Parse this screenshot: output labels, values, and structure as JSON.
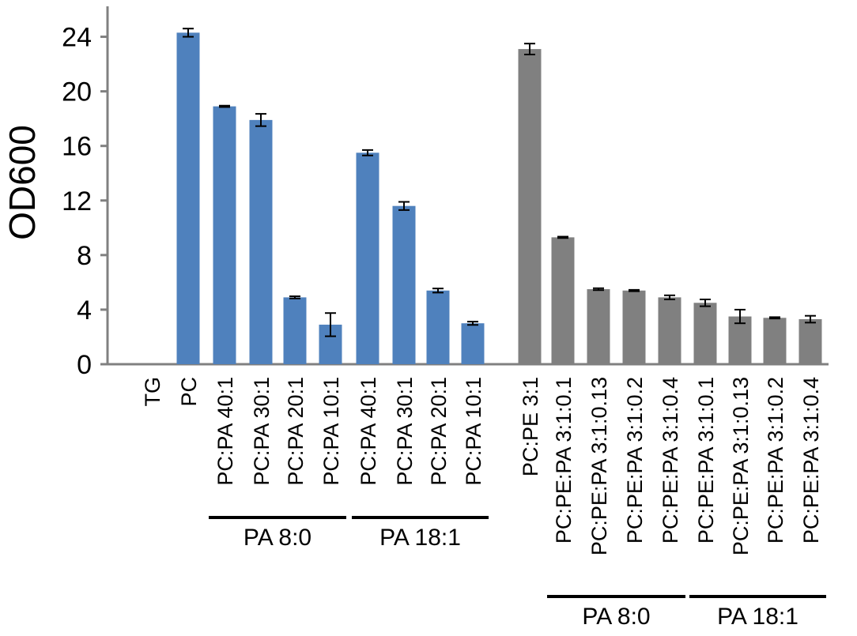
{
  "chart_data": {
    "type": "bar",
    "title": "",
    "xlabel": "",
    "ylabel": "OD600",
    "ylim": [
      0,
      26
    ],
    "yticks": [
      0,
      4,
      8,
      12,
      16,
      20,
      24
    ],
    "grid": false,
    "legend": "none",
    "colors": {
      "blue": "#4f81bd",
      "gray": "#808080",
      "axis": "#808080",
      "error": "#000000",
      "group_line": "#000000"
    },
    "categories": [
      "TG",
      "PC",
      "PC:PA 40:1",
      "PC:PA 30:1",
      "PC:PA 20:1",
      "PC:PA 10:1",
      "PC:PA 40:1",
      "PC:PA 30:1",
      "PC:PA 20:1",
      "PC:PA 10:1",
      "PC:PE 3:1",
      "PC:PE:PA 3:1:0.1",
      "PC:PE:PA 3:1:0.13",
      "PC:PE:PA 3:1:0.2",
      "PC:PE:PA 3:1:0.4",
      "PC:PE:PA 3:1:0.1",
      "PC:PE:PA 3:1:0.13",
      "PC:PE:PA 3:1:0.2",
      "PC:PE:PA 3:1:0.4"
    ],
    "values": [
      0,
      24.3,
      18.9,
      17.9,
      4.9,
      2.9,
      15.5,
      11.6,
      5.4,
      3.0,
      23.1,
      9.3,
      5.5,
      5.4,
      4.9,
      4.5,
      3.5,
      3.4,
      3.3
    ],
    "errors": [
      0,
      0.3,
      0.05,
      0.45,
      0.08,
      0.85,
      0.2,
      0.3,
      0.15,
      0.12,
      0.4,
      0.05,
      0.07,
      0.05,
      0.15,
      0.25,
      0.5,
      0.05,
      0.25
    ],
    "bar_color_keys": [
      "blue",
      "blue",
      "blue",
      "blue",
      "blue",
      "blue",
      "blue",
      "blue",
      "blue",
      "blue",
      "gray",
      "gray",
      "gray",
      "gray",
      "gray",
      "gray",
      "gray",
      "gray",
      "gray"
    ],
    "groups": [
      {
        "label": "PA 8:0",
        "start": 2,
        "end": 5
      },
      {
        "label": "PA 18:1",
        "start": 6,
        "end": 9
      },
      {
        "label": "PA 8:0",
        "start": 11,
        "end": 14
      },
      {
        "label": "PA 18:1",
        "start": 15,
        "end": 18
      }
    ]
  }
}
